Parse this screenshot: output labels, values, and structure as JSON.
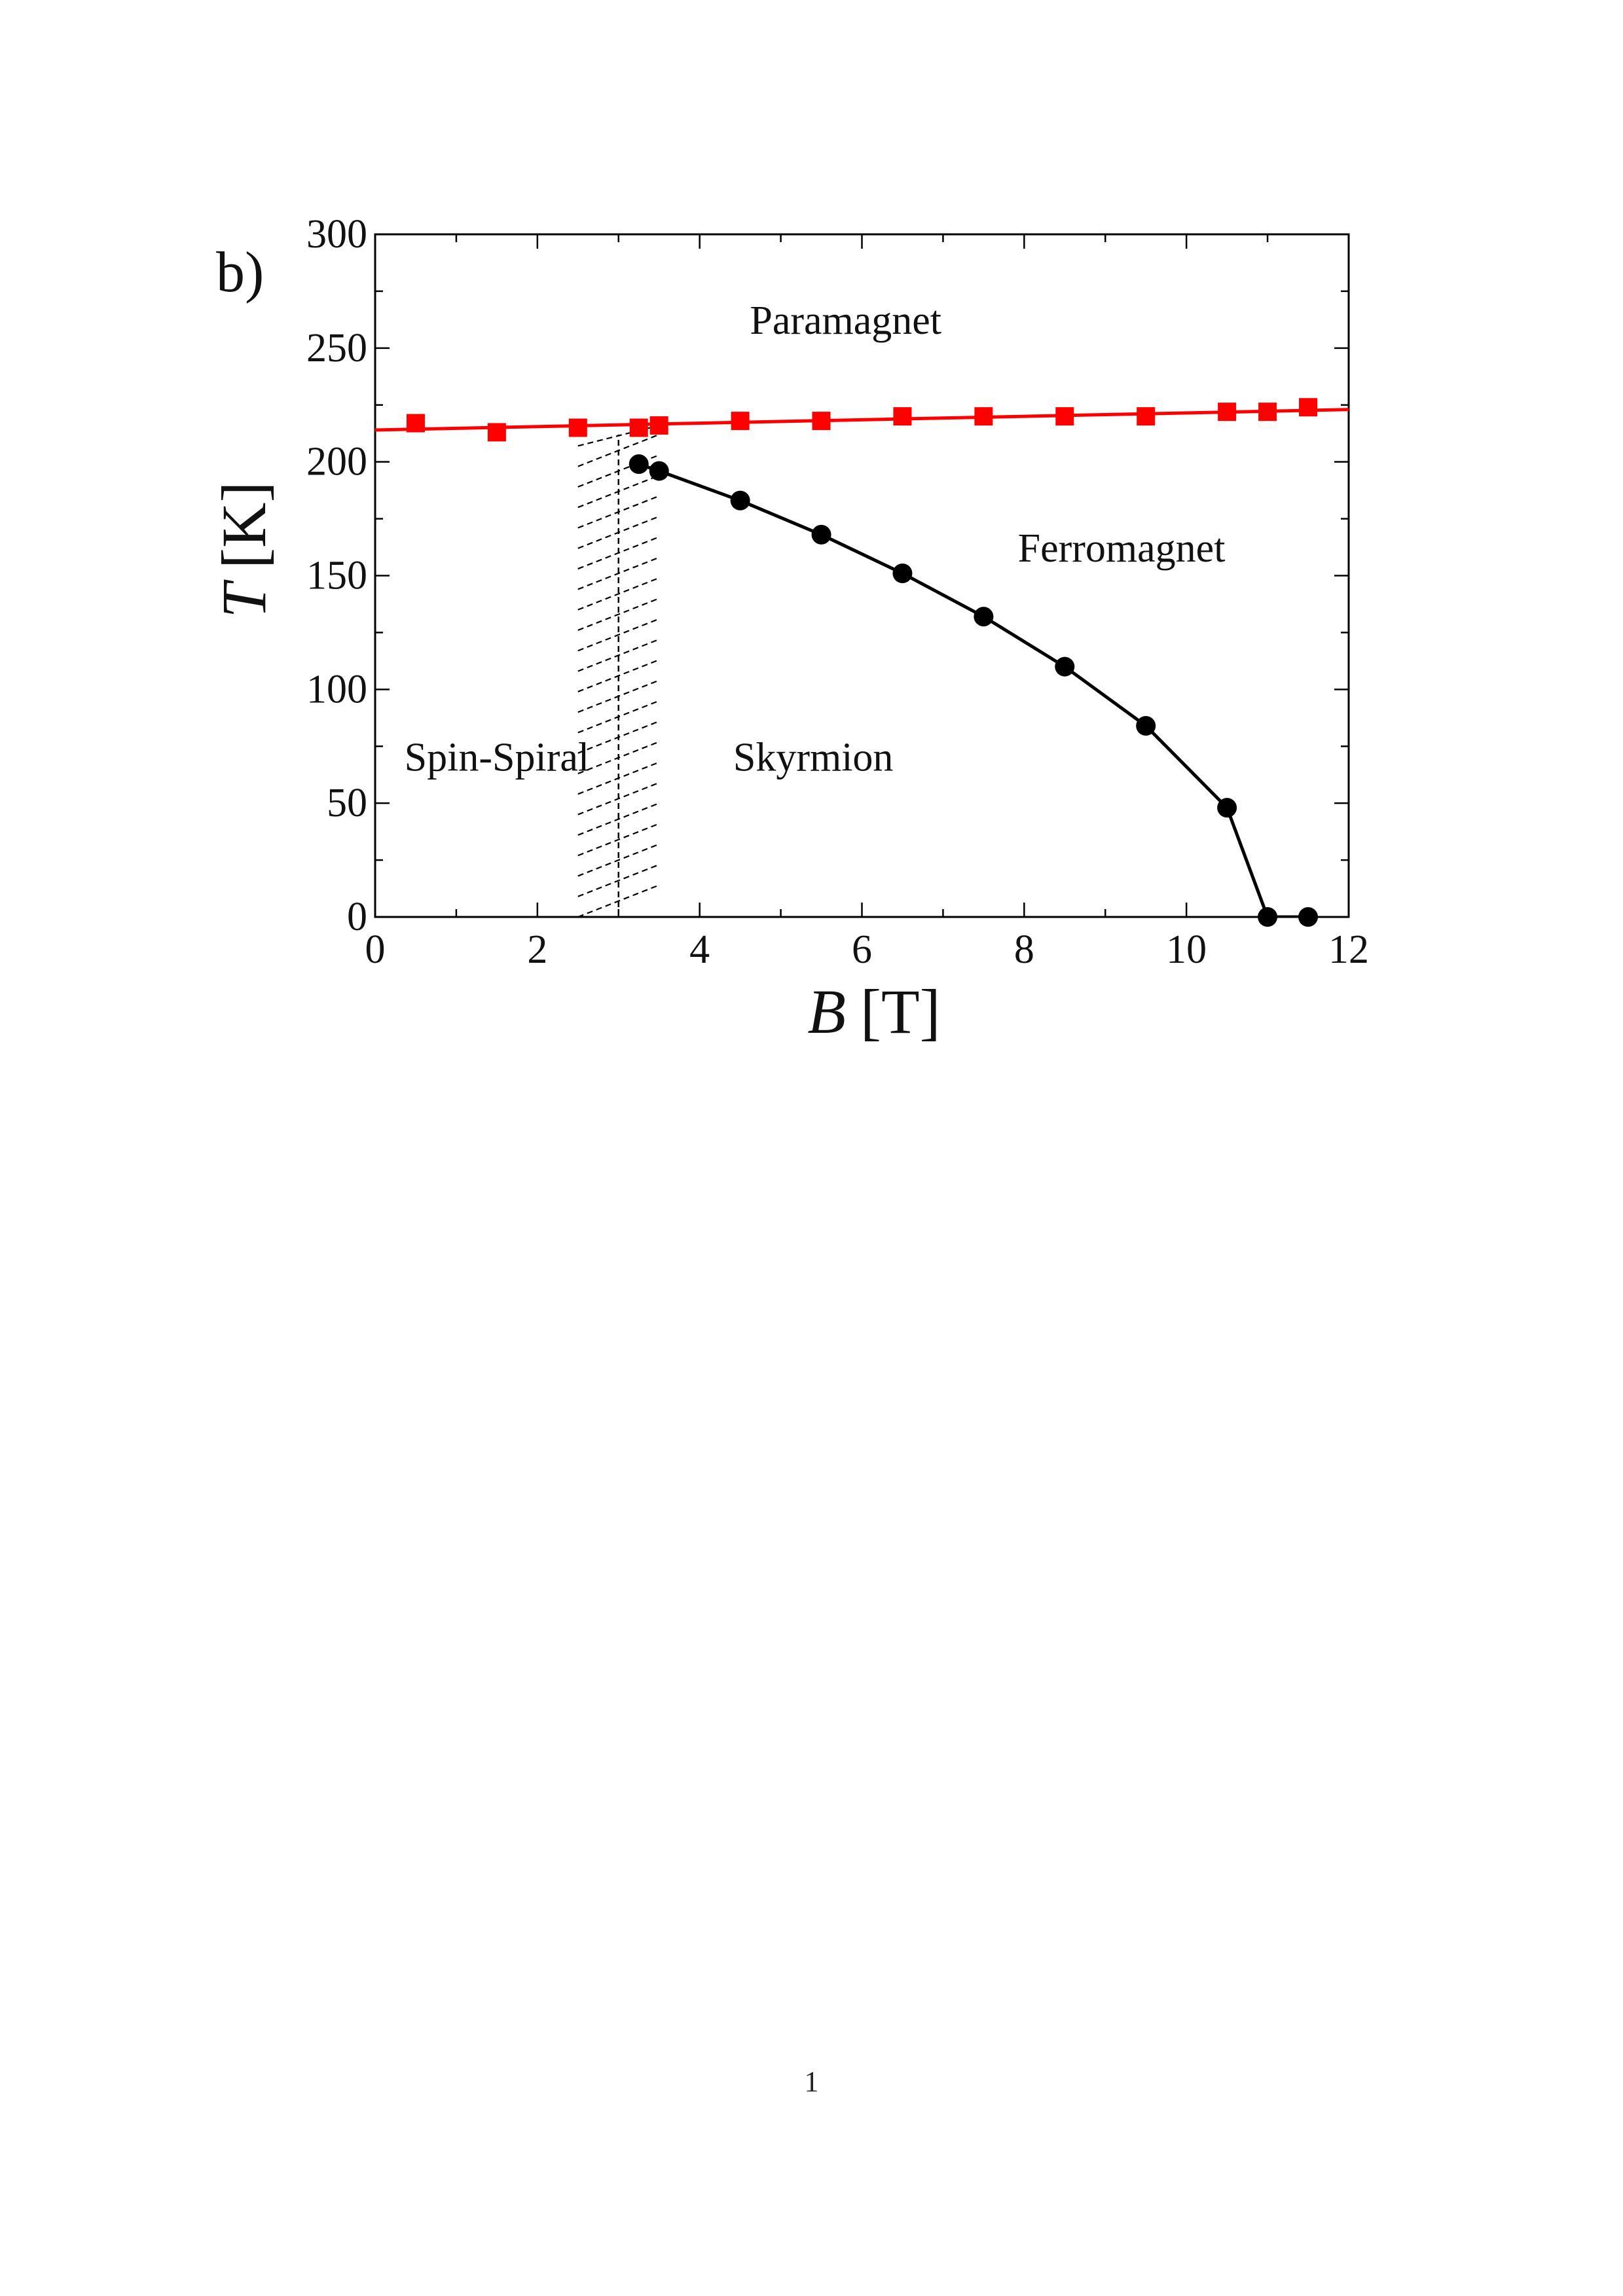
{
  "chart_data": {
    "type": "scatter",
    "panel_label": "b)",
    "xlabel": "B",
    "xunit": "[T]",
    "ylabel": "T",
    "yunit": "[K]",
    "xlim": [
      0,
      12
    ],
    "ylim": [
      0,
      300
    ],
    "xticks": [
      0,
      2,
      4,
      6,
      8,
      10,
      12
    ],
    "yticks": [
      0,
      50,
      100,
      150,
      200,
      250,
      300
    ],
    "grid": false,
    "series": [
      {
        "marker": "square",
        "color": "#ff0000",
        "line": "linear-fit",
        "fit_endpoints": [
          [
            0,
            214
          ],
          [
            12,
            223
          ]
        ],
        "x": [
          0.5,
          1.5,
          2.5,
          3.25,
          3.5,
          4.5,
          5.5,
          6.5,
          7.5,
          8.5,
          9.5,
          10.5,
          11.0,
          11.5
        ],
        "y": [
          217,
          213,
          215,
          215,
          216,
          218,
          218,
          220,
          220,
          220,
          220,
          222,
          222,
          224
        ]
      },
      {
        "marker": "circle",
        "color": "#000000",
        "line": "connected",
        "x": [
          3.25,
          3.5,
          4.5,
          5.5,
          6.5,
          7.5,
          8.5,
          9.5,
          10.5,
          11.0,
          11.5
        ],
        "y": [
          199,
          196,
          183,
          168,
          151,
          132,
          110,
          84,
          48,
          0,
          0
        ]
      }
    ],
    "boundary": {
      "style": "dashed",
      "x": 3.0,
      "hatch_x_range": [
        2.5,
        3.5
      ],
      "y_range": [
        0,
        212
      ]
    },
    "annotations": [
      {
        "text": "Paramagnet",
        "x": 5.8,
        "y": 262
      },
      {
        "text": "Ferromagnet",
        "x": 9.2,
        "y": 162
      },
      {
        "text": "Spin-Spiral",
        "x": 1.5,
        "y": 70
      },
      {
        "text": "Skyrmion",
        "x": 5.4,
        "y": 70
      }
    ]
  },
  "page_number": "1"
}
